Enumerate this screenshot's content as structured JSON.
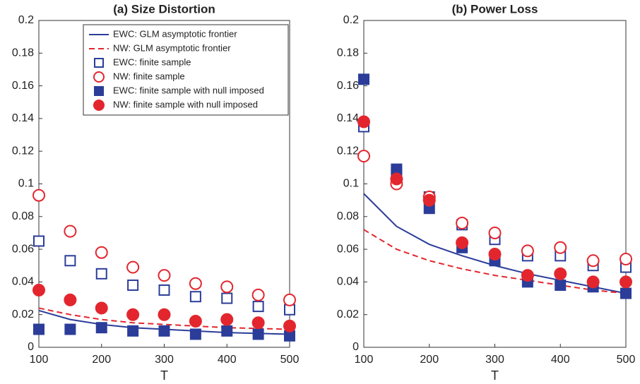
{
  "chart_data": [
    {
      "type": "scatter",
      "title": "(a) Size Distortion",
      "xlabel": "T",
      "x": [
        100,
        150,
        200,
        250,
        300,
        350,
        400,
        450,
        500
      ],
      "xlim": [
        100,
        500
      ],
      "xticks": [
        100,
        200,
        300,
        400,
        500
      ],
      "ylim": [
        0,
        0.2
      ],
      "yticks": [
        0,
        0.02,
        0.04,
        0.06,
        0.08,
        0.1,
        0.12,
        0.14,
        0.16,
        0.18,
        0.2
      ],
      "legend": "upper right",
      "series": [
        {
          "name": "EWC: GLM asymptotic frontier",
          "color": "#2b3d99",
          "line_style": "solid",
          "values": [
            0.0225,
            0.017,
            0.014,
            0.012,
            0.011,
            0.01,
            0.009,
            0.0085,
            0.008
          ]
        },
        {
          "name": "NW: GLM asymptotic frontier",
          "color": "#e3262e",
          "line_style": "dashed",
          "values": [
            0.024,
            0.02,
            0.017,
            0.015,
            0.014,
            0.013,
            0.012,
            0.0115,
            0.011
          ]
        },
        {
          "name": "EWC: finite sample",
          "color": "#2b3d99",
          "marker": "square",
          "filled": false,
          "values": [
            0.065,
            0.053,
            0.045,
            0.038,
            0.035,
            0.031,
            0.03,
            0.025,
            0.023
          ]
        },
        {
          "name": "NW: finite sample",
          "color": "#e3262e",
          "marker": "circle",
          "filled": false,
          "values": [
            0.093,
            0.071,
            0.058,
            0.049,
            0.044,
            0.039,
            0.037,
            0.032,
            0.029
          ]
        },
        {
          "name": "EWC: finite sample with null imposed",
          "color": "#2b3d99",
          "marker": "square",
          "filled": true,
          "values": [
            0.011,
            0.011,
            0.012,
            0.01,
            0.01,
            0.008,
            0.01,
            0.008,
            0.007
          ]
        },
        {
          "name": "NW: finite sample with null imposed",
          "color": "#e3262e",
          "marker": "circle",
          "filled": true,
          "values": [
            0.035,
            0.029,
            0.024,
            0.02,
            0.02,
            0.016,
            0.017,
            0.015,
            0.013
          ]
        }
      ]
    },
    {
      "type": "scatter",
      "title": "(b) Power Loss",
      "xlabel": "T",
      "x": [
        100,
        150,
        200,
        250,
        300,
        350,
        400,
        450,
        500
      ],
      "xlim": [
        100,
        500
      ],
      "xticks": [
        100,
        200,
        300,
        400,
        500
      ],
      "ylim": [
        0,
        0.2
      ],
      "yticks": [
        0,
        0.02,
        0.04,
        0.06,
        0.08,
        0.1,
        0.12,
        0.14,
        0.16,
        0.18,
        0.2
      ],
      "series": [
        {
          "color": "#2b3d99",
          "line_style": "solid",
          "values": [
            0.094,
            0.074,
            0.063,
            0.056,
            0.05,
            0.045,
            0.041,
            0.037,
            0.033
          ]
        },
        {
          "color": "#e3262e",
          "line_style": "dashed",
          "values": [
            0.072,
            0.06,
            0.053,
            0.048,
            0.044,
            0.041,
            0.038,
            0.035,
            0.033
          ]
        },
        {
          "color": "#2b3d99",
          "marker": "square",
          "filled": false,
          "values": [
            0.135,
            0.107,
            0.092,
            0.075,
            0.066,
            0.056,
            0.056,
            0.05,
            0.049
          ]
        },
        {
          "color": "#e3262e",
          "marker": "circle",
          "filled": false,
          "values": [
            0.117,
            0.1,
            0.092,
            0.076,
            0.07,
            0.059,
            0.061,
            0.053,
            0.054
          ]
        },
        {
          "color": "#2b3d99",
          "marker": "square",
          "filled": true,
          "values": [
            0.164,
            0.109,
            0.085,
            0.061,
            0.053,
            0.04,
            0.038,
            0.037,
            0.033
          ]
        },
        {
          "color": "#e3262e",
          "marker": "circle",
          "filled": true,
          "values": [
            0.138,
            0.103,
            0.09,
            0.064,
            0.057,
            0.044,
            0.045,
            0.04,
            0.04
          ]
        }
      ]
    }
  ]
}
